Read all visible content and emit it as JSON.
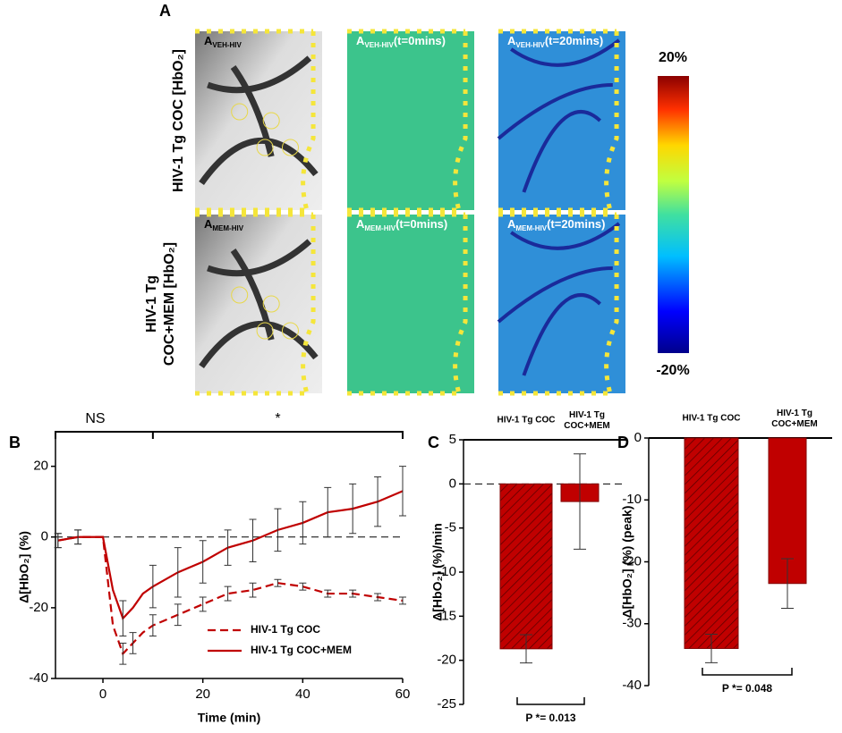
{
  "panel_a": {
    "panel": "A",
    "rows": [
      [
        "HIV-1 Tg COC [HbO₂]"
      ],
      [
        "HIV-1 Tg",
        "COC+MEM [HbO₂]"
      ]
    ],
    "images": [
      [
        {
          "label": "A",
          "sub": "VEH-HIV"
        },
        {
          "label": "A",
          "sub": "VEH-HIV",
          "suffix": "(t=0mins)"
        },
        {
          "label": "A",
          "sub": "VEH-HIV",
          "suffix": "(t=20mins)"
        }
      ],
      [
        {
          "label": "A",
          "sub": "MEM-HIV"
        },
        {
          "label": "A",
          "sub": "MEM-HIV",
          "suffix": "(t=0mins)"
        },
        {
          "label": "A",
          "sub": "MEM-HIV",
          "suffix": "(t=20mins)"
        }
      ]
    ],
    "colorbar": {
      "max_label": "20%",
      "min_label": "-20%"
    }
  },
  "chart_data": [
    {
      "type": "line",
      "panel": "B",
      "xlabel": "Time (min)",
      "ylabel": "Δ[HbO₂] (%)",
      "x": [
        -9,
        -5,
        -2,
        0,
        2,
        4,
        6,
        8,
        10,
        15,
        20,
        25,
        30,
        35,
        40,
        45,
        50,
        55,
        60
      ],
      "series": [
        {
          "name": "HIV-1 Tg COC",
          "color": "#c00000",
          "dash": true,
          "values": [
            -1,
            0,
            0,
            0,
            -25,
            -33,
            -30,
            -27,
            -25,
            -22,
            -19,
            -16,
            -15,
            -13,
            -14,
            -16,
            -16,
            -17,
            -18
          ],
          "errors": [
            2,
            2,
            null,
            null,
            null,
            3,
            3,
            null,
            3,
            3,
            2,
            2,
            2,
            1,
            1,
            1,
            1,
            1,
            1
          ]
        },
        {
          "name": "HIV-1 Tg COC+MEM",
          "color": "#c00000",
          "dash": false,
          "values": [
            -1,
            0,
            0,
            0,
            -15,
            -23,
            -20,
            -16,
            -14,
            -10,
            -7,
            -3,
            -1,
            2,
            4,
            7,
            8,
            10,
            13
          ],
          "errors": [
            2,
            2,
            null,
            null,
            null,
            5,
            null,
            null,
            6,
            7,
            6,
            5,
            6,
            6,
            6,
            7,
            7,
            7,
            7
          ]
        }
      ],
      "xlim": [
        -9.5,
        60
      ],
      "xticks": [
        0,
        20,
        40,
        60
      ],
      "ylim": [
        -40,
        28
      ],
      "yticks": [
        -40,
        -20,
        0,
        20
      ],
      "reference_line": 0,
      "annotations": [
        "NS",
        "*"
      ],
      "legend": "lower-right"
    },
    {
      "type": "bar",
      "panel": "C",
      "ylabel": "Δ[HbO₂] (%)/min",
      "categories": [
        "HIV-1 Tg COC",
        "HIV-1 Tg COC+MEM"
      ],
      "values": [
        -18.7,
        -2
      ],
      "errors": [
        1.6,
        5.4
      ],
      "hatch": [
        true,
        false
      ],
      "color": "#c00000",
      "ylim": [
        -25,
        5
      ],
      "yticks": [
        5,
        0,
        -5,
        -10,
        -15,
        -20,
        -25
      ],
      "reference_line": 0,
      "annotations": [
        "P *= 0.013"
      ]
    },
    {
      "type": "bar",
      "panel": "D",
      "ylabel": "Δ[HbO₂] (%) (peak)",
      "categories": [
        "HIV-1 Tg COC",
        "HIV-1 Tg COC+MEM"
      ],
      "values": [
        -34,
        -23.5
      ],
      "errors": [
        2.3,
        4
      ],
      "hatch": [
        true,
        false
      ],
      "color": "#c00000",
      "ylim": [
        -40,
        0
      ],
      "yticks": [
        0,
        -10,
        -20,
        -30,
        -40
      ],
      "annotations": [
        "P *= 0.048"
      ]
    }
  ]
}
